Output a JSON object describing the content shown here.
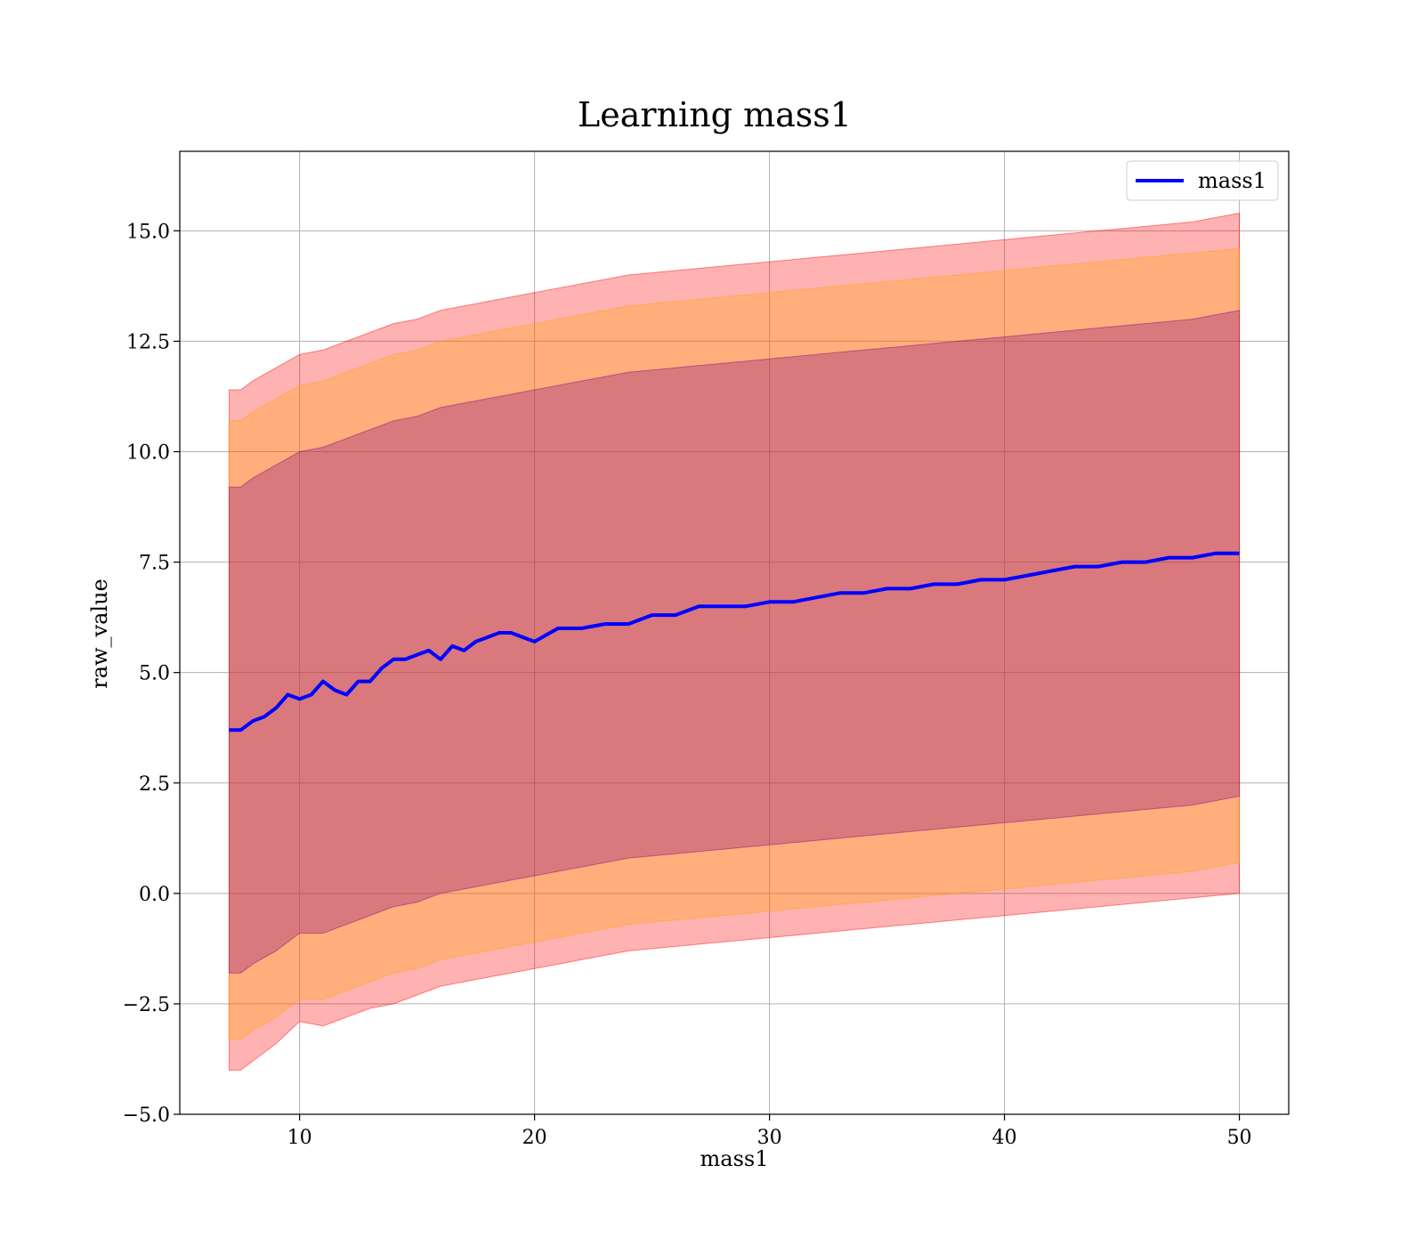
{
  "chart_data": {
    "type": "line",
    "title": "Learning mass1",
    "xlabel": "mass1",
    "ylabel": "raw_value",
    "xlim": [
      4.9,
      52.1
    ],
    "ylim": [
      -5.0,
      16.8
    ],
    "xticks": [
      10,
      20,
      30,
      40,
      50
    ],
    "xtick_labels": [
      "10",
      "20",
      "30",
      "40",
      "50"
    ],
    "yticks": [
      -5.0,
      -2.5,
      0.0,
      2.5,
      5.0,
      7.5,
      10.0,
      12.5,
      15.0
    ],
    "ytick_labels": [
      "−5.0",
      "−2.5",
      "0.0",
      "2.5",
      "5.0",
      "7.5",
      "10.0",
      "12.5",
      "15.0"
    ],
    "grid": true,
    "legend_position": "top-right",
    "series": [
      {
        "name": "mass1",
        "color": "#0000ff",
        "x": [
          7.0,
          7.5,
          8.0,
          8.5,
          9.0,
          9.5,
          10.0,
          10.5,
          11.0,
          11.5,
          12.0,
          12.5,
          13.0,
          13.5,
          14.0,
          14.5,
          15.0,
          15.5,
          16.0,
          16.5,
          17.0,
          17.5,
          18.0,
          18.5,
          19.0,
          19.5,
          20.0,
          21.0,
          22.0,
          23.0,
          24.0,
          25.0,
          26.0,
          27.0,
          28.0,
          29.0,
          30.0,
          31.0,
          32.0,
          33.0,
          34.0,
          35.0,
          36.0,
          37.0,
          38.0,
          39.0,
          40.0,
          41.0,
          42.0,
          43.0,
          44.0,
          45.0,
          46.0,
          47.0,
          48.0,
          49.0,
          50.0
        ],
        "y": [
          3.7,
          3.7,
          3.9,
          4.0,
          4.2,
          4.5,
          4.4,
          4.5,
          4.8,
          4.6,
          4.5,
          4.8,
          4.8,
          5.1,
          5.3,
          5.3,
          5.4,
          5.5,
          5.3,
          5.6,
          5.5,
          5.7,
          5.8,
          5.9,
          5.9,
          5.8,
          5.7,
          6.0,
          6.0,
          6.1,
          6.1,
          6.3,
          6.3,
          6.5,
          6.5,
          6.5,
          6.6,
          6.6,
          6.7,
          6.8,
          6.8,
          6.9,
          6.9,
          7.0,
          7.0,
          7.1,
          7.1,
          7.2,
          7.3,
          7.4,
          7.4,
          7.5,
          7.5,
          7.6,
          7.6,
          7.7,
          7.7
        ]
      }
    ],
    "bands": [
      {
        "color": "#ff0000",
        "x": [
          7.0,
          7.5,
          8.0,
          9.0,
          10.0,
          11.0,
          12.0,
          13.0,
          14.0,
          15.0,
          16.0,
          17.0,
          18.0,
          19.0,
          20.0,
          22.0,
          24.0,
          26.0,
          28.0,
          30.0,
          32.0,
          34.0,
          36.0,
          38.0,
          40.0,
          42.0,
          44.0,
          46.0,
          48.0,
          50.0
        ],
        "lower": [
          -4.0,
          -4.0,
          -3.8,
          -3.4,
          -2.9,
          -3.0,
          -2.8,
          -2.6,
          -2.5,
          -2.3,
          -2.1,
          -2.0,
          -1.9,
          -1.8,
          -1.7,
          -1.5,
          -1.3,
          -1.2,
          -1.1,
          -1.0,
          -0.9,
          -0.8,
          -0.7,
          -0.6,
          -0.5,
          -0.4,
          -0.3,
          -0.2,
          -0.1,
          0.0
        ],
        "upper": [
          11.4,
          11.4,
          11.6,
          11.9,
          12.2,
          12.3,
          12.5,
          12.7,
          12.9,
          13.0,
          13.2,
          13.3,
          13.4,
          13.5,
          13.6,
          13.8,
          14.0,
          14.1,
          14.2,
          14.3,
          14.4,
          14.5,
          14.6,
          14.7,
          14.8,
          14.9,
          15.0,
          15.1,
          15.2,
          15.4
        ]
      },
      {
        "color": "#ffa500",
        "x": [
          7.0,
          7.5,
          8.0,
          9.0,
          10.0,
          11.0,
          12.0,
          13.0,
          14.0,
          15.0,
          16.0,
          17.0,
          18.0,
          19.0,
          20.0,
          22.0,
          24.0,
          26.0,
          28.0,
          30.0,
          32.0,
          34.0,
          36.0,
          38.0,
          40.0,
          42.0,
          44.0,
          46.0,
          48.0,
          50.0
        ],
        "lower": [
          -3.3,
          -3.3,
          -3.1,
          -2.8,
          -2.4,
          -2.4,
          -2.2,
          -2.0,
          -1.8,
          -1.7,
          -1.5,
          -1.4,
          -1.3,
          -1.2,
          -1.1,
          -0.9,
          -0.7,
          -0.6,
          -0.5,
          -0.4,
          -0.3,
          -0.2,
          -0.1,
          0.0,
          0.1,
          0.2,
          0.3,
          0.4,
          0.5,
          0.7
        ],
        "upper": [
          10.7,
          10.7,
          10.9,
          11.2,
          11.5,
          11.6,
          11.8,
          12.0,
          12.2,
          12.3,
          12.5,
          12.6,
          12.7,
          12.8,
          12.9,
          13.1,
          13.3,
          13.4,
          13.5,
          13.6,
          13.7,
          13.8,
          13.9,
          14.0,
          14.1,
          14.2,
          14.3,
          14.4,
          14.5,
          14.6
        ]
      },
      {
        "color": "#800080",
        "x": [
          7.0,
          7.5,
          8.0,
          9.0,
          10.0,
          11.0,
          12.0,
          13.0,
          14.0,
          15.0,
          16.0,
          17.0,
          18.0,
          19.0,
          20.0,
          22.0,
          24.0,
          26.0,
          28.0,
          30.0,
          32.0,
          34.0,
          36.0,
          38.0,
          40.0,
          42.0,
          44.0,
          46.0,
          48.0,
          50.0
        ],
        "lower": [
          -1.8,
          -1.8,
          -1.6,
          -1.3,
          -0.9,
          -0.9,
          -0.7,
          -0.5,
          -0.3,
          -0.2,
          0.0,
          0.1,
          0.2,
          0.3,
          0.4,
          0.6,
          0.8,
          0.9,
          1.0,
          1.1,
          1.2,
          1.3,
          1.4,
          1.5,
          1.6,
          1.7,
          1.8,
          1.9,
          2.0,
          2.2
        ],
        "upper": [
          9.2,
          9.2,
          9.4,
          9.7,
          10.0,
          10.1,
          10.3,
          10.5,
          10.7,
          10.8,
          11.0,
          11.1,
          11.2,
          11.3,
          11.4,
          11.6,
          11.8,
          11.9,
          12.0,
          12.1,
          12.2,
          12.3,
          12.4,
          12.5,
          12.6,
          12.7,
          12.8,
          12.9,
          13.0,
          13.2
        ]
      }
    ]
  }
}
